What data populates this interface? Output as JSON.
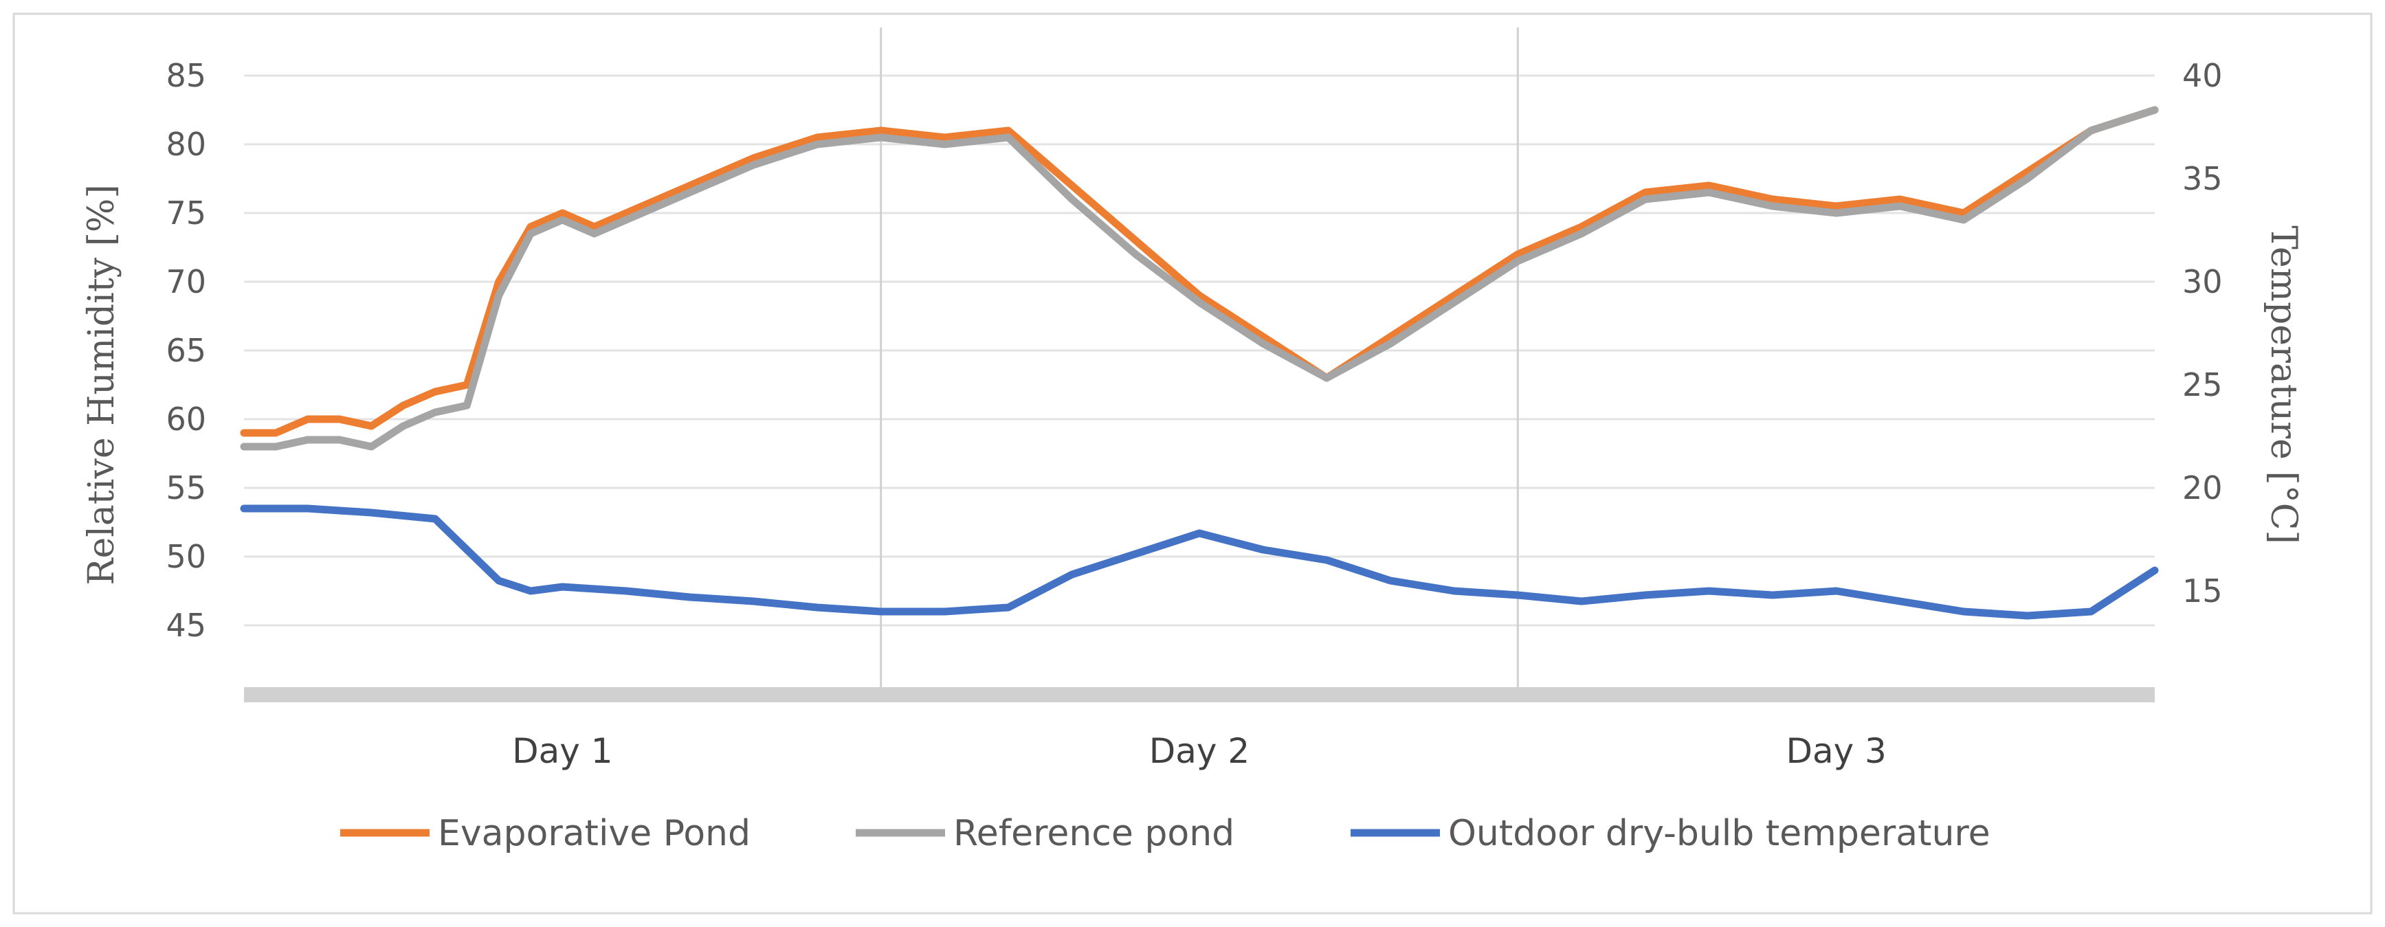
{
  "chart_data": {
    "type": "line",
    "categories": [
      "Day 1",
      "Day 2",
      "Day 3"
    ],
    "y_left": {
      "label": "Relative  Humidity  [%]",
      "ticks": [
        45,
        50,
        55,
        60,
        65,
        70,
        75,
        80,
        85
      ],
      "range": [
        40,
        85
      ]
    },
    "y_right": {
      "label": "Temperature  [°C]",
      "ticks": [
        15,
        20,
        25,
        30,
        35,
        40
      ],
      "range": [
        10,
        40
      ]
    },
    "x_range": [
      0,
      3
    ],
    "grid": true,
    "legend_position": "bottom",
    "series": [
      {
        "name": "Evaporative Pond",
        "axis": "left",
        "color": "#ED7D31",
        "x": [
          0.0,
          0.05,
          0.1,
          0.15,
          0.2,
          0.25,
          0.3,
          0.35,
          0.4,
          0.45,
          0.5,
          0.55,
          0.6,
          0.7,
          0.8,
          0.9,
          1.0,
          1.1,
          1.2,
          1.3,
          1.4,
          1.5,
          1.6,
          1.7,
          1.8,
          1.9,
          2.0,
          2.1,
          2.2,
          2.3,
          2.4,
          2.5,
          2.6,
          2.7,
          2.8,
          2.9,
          3.0
        ],
        "y": [
          59,
          59,
          60,
          60,
          59.5,
          61,
          62,
          62.5,
          70,
          74,
          75,
          74,
          75,
          77,
          79,
          80.5,
          81,
          80.5,
          81,
          77,
          73,
          69,
          66,
          63,
          66,
          69,
          72,
          74,
          76.5,
          77,
          76,
          75.5,
          76,
          75,
          78,
          81,
          82.5
        ]
      },
      {
        "name": "Reference pond",
        "axis": "left",
        "color": "#A5A5A5",
        "x": [
          0.0,
          0.05,
          0.1,
          0.15,
          0.2,
          0.25,
          0.3,
          0.35,
          0.4,
          0.45,
          0.5,
          0.55,
          0.6,
          0.7,
          0.8,
          0.9,
          1.0,
          1.1,
          1.2,
          1.3,
          1.4,
          1.5,
          1.6,
          1.7,
          1.8,
          1.9,
          2.0,
          2.1,
          2.2,
          2.3,
          2.4,
          2.5,
          2.6,
          2.7,
          2.8,
          2.9,
          3.0
        ],
        "y": [
          58,
          58,
          58.5,
          58.5,
          58,
          59.5,
          60.5,
          61,
          69,
          73.5,
          74.5,
          73.5,
          74.5,
          76.5,
          78.5,
          80,
          80.5,
          80,
          80.5,
          76,
          72,
          68.5,
          65.5,
          63,
          65.5,
          68.5,
          71.5,
          73.5,
          76,
          76.5,
          75.5,
          75,
          75.5,
          74.5,
          77.5,
          81,
          82.5
        ]
      },
      {
        "name": "Outdoor dry-bulb temperature",
        "axis": "right",
        "color": "#4472C4",
        "x": [
          0.0,
          0.1,
          0.2,
          0.3,
          0.35,
          0.4,
          0.45,
          0.5,
          0.6,
          0.7,
          0.8,
          0.9,
          1.0,
          1.1,
          1.2,
          1.3,
          1.4,
          1.5,
          1.6,
          1.7,
          1.8,
          1.9,
          2.0,
          2.1,
          2.2,
          2.3,
          2.4,
          2.5,
          2.6,
          2.7,
          2.8,
          2.9,
          3.0
        ],
        "y": [
          19,
          19,
          18.8,
          18.5,
          17,
          15.5,
          15,
          15.2,
          15,
          14.7,
          14.5,
          14.2,
          14,
          14,
          14.2,
          15.8,
          16.8,
          17.8,
          17,
          16.5,
          15.5,
          15,
          14.8,
          14.5,
          14.8,
          15,
          14.8,
          15,
          14.5,
          14,
          13.8,
          14,
          16
        ]
      }
    ]
  }
}
